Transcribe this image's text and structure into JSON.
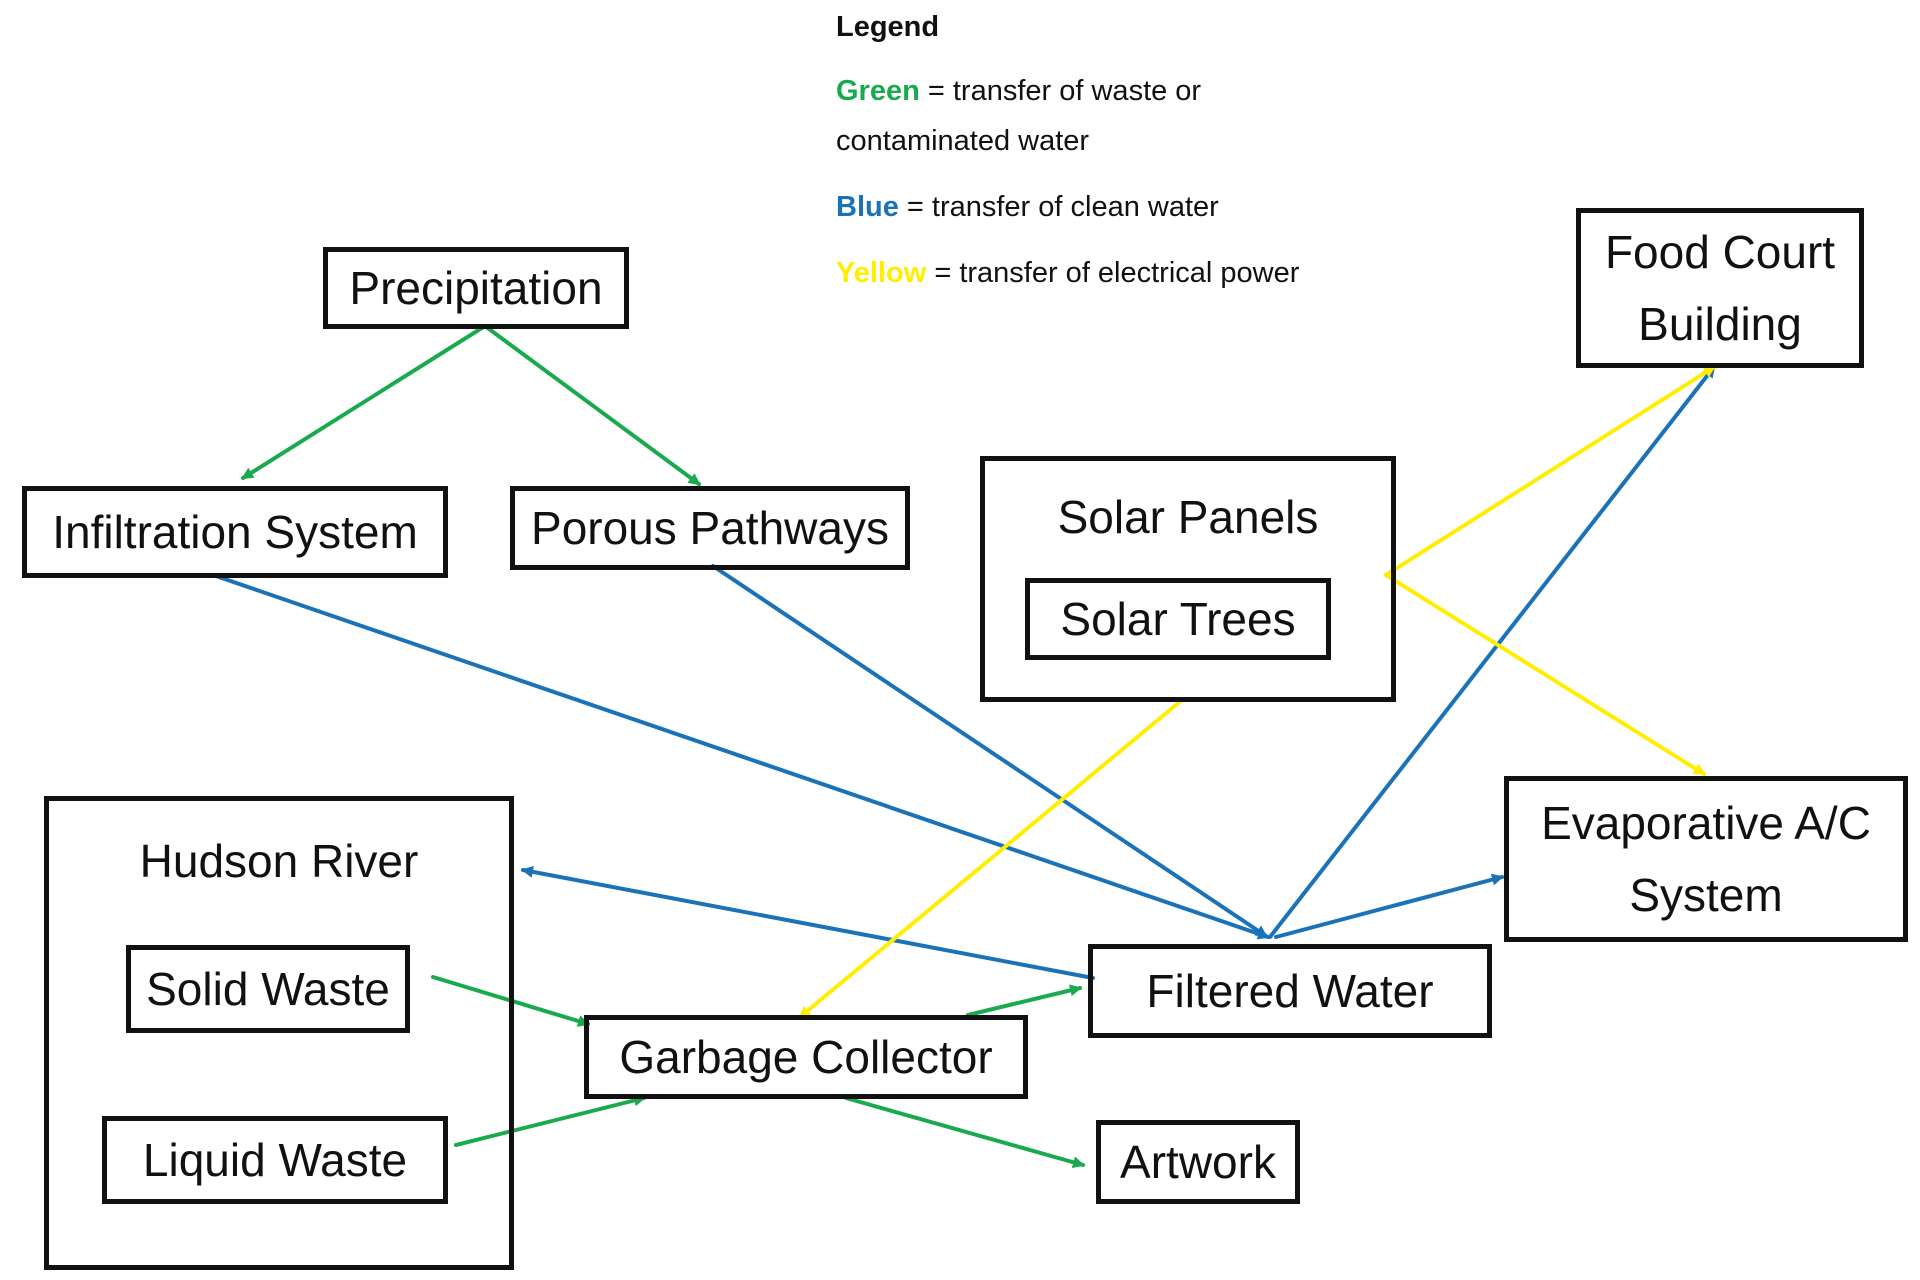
{
  "legend": {
    "title": "Legend",
    "items": [
      {
        "key": "Green",
        "color": "#1aaa4e",
        "text": " = transfer of waste or contaminated water"
      },
      {
        "key": "Blue",
        "color": "#1a72b8",
        "text": " = transfer of clean water"
      },
      {
        "key": "Yellow",
        "color": "#ffee00",
        "text": "  = transfer of electrical power"
      }
    ]
  },
  "nodes": {
    "precipitation": "Precipitation",
    "infiltration_system": "Infiltration System",
    "porous_pathways": "Porous Pathways",
    "solar_panels": "Solar Panels",
    "solar_trees": "Solar Trees",
    "food_court_building": "Food Court\nBuilding",
    "evaporative_ac_system": "Evaporative A/C\nSystem",
    "hudson_river": "Hudson River",
    "solid_waste": "Solid Waste",
    "liquid_waste": "Liquid Waste",
    "garbage_collector": "Garbage Collector",
    "filtered_water": "Filtered Water",
    "artwork": "Artwork"
  },
  "edges": [
    {
      "from": "precipitation",
      "to": "infiltration_system",
      "color": "green"
    },
    {
      "from": "precipitation",
      "to": "porous_pathways",
      "color": "green"
    },
    {
      "from": "infiltration_system",
      "to": "filtered_water",
      "color": "blue"
    },
    {
      "from": "porous_pathways",
      "to": "filtered_water",
      "color": "blue"
    },
    {
      "from": "filtered_water",
      "to": "food_court_building",
      "color": "blue"
    },
    {
      "from": "filtered_water",
      "to": "evaporative_ac_system",
      "color": "blue"
    },
    {
      "from": "filtered_water",
      "to": "hudson_river",
      "color": "blue"
    },
    {
      "from": "solar_panels",
      "to": "food_court_building",
      "color": "yellow"
    },
    {
      "from": "solar_panels",
      "to": "evaporative_ac_system",
      "color": "yellow"
    },
    {
      "from": "solar_panels",
      "to": "garbage_collector",
      "color": "yellow"
    },
    {
      "from": "solid_waste",
      "to": "garbage_collector",
      "color": "green"
    },
    {
      "from": "liquid_waste",
      "to": "garbage_collector",
      "color": "green"
    },
    {
      "from": "garbage_collector",
      "to": "filtered_water",
      "color": "green"
    },
    {
      "from": "garbage_collector",
      "to": "artwork",
      "color": "green"
    }
  ],
  "colors": {
    "green": "#1aaa4e",
    "blue": "#1a72b8",
    "yellow": "#ffee00",
    "border": "#111111"
  }
}
